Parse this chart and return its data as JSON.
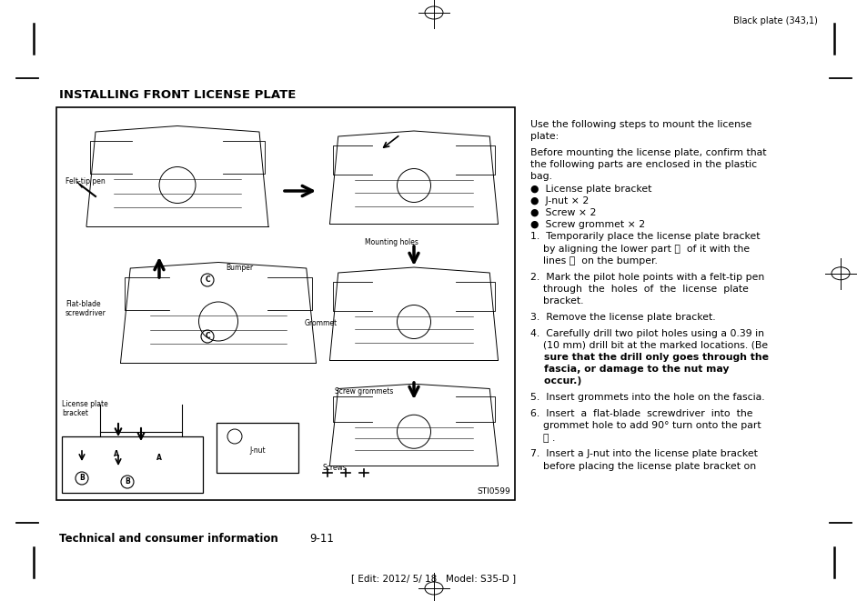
{
  "page_background": "#ffffff",
  "header_text": "Black plate (343,1)",
  "footer_text": "[ Edit: 2012/ 5/ 18   Model: S35-D ]",
  "section_title": "INSTALLING FRONT LICENSE PLATE",
  "image_label": "STI0599",
  "font_size_body": 7.8,
  "font_size_header": 7.0,
  "font_size_title": 9.5,
  "font_size_footer": 7.5,
  "right_col_lines": [
    {
      "text": "Use the following steps to mount the license",
      "bold": false,
      "indent": 0
    },
    {
      "text": "plate:",
      "bold": false,
      "indent": 0
    },
    {
      "text": "",
      "bold": false,
      "indent": 0
    },
    {
      "text": "Before mounting the license plate, confirm that",
      "bold": false,
      "indent": 0
    },
    {
      "text": "the following parts are enclosed in the plastic",
      "bold": false,
      "indent": 0
    },
    {
      "text": "bag.",
      "bold": false,
      "indent": 0
    },
    {
      "text": "●  License plate bracket",
      "bold": false,
      "indent": 0
    },
    {
      "text": "●  J-nut × 2",
      "bold": false,
      "indent": 0
    },
    {
      "text": "●  Screw × 2",
      "bold": false,
      "indent": 0
    },
    {
      "text": "●  Screw grommet × 2",
      "bold": false,
      "indent": 0
    },
    {
      "text": "1.  Temporarily place the license plate bracket",
      "bold": false,
      "indent": 0
    },
    {
      "text": "    by aligning the lower part Ⓐ  of it with the",
      "bold": false,
      "indent": 0
    },
    {
      "text": "    lines Ⓑ  on the bumper.",
      "bold": false,
      "indent": 0
    },
    {
      "text": "",
      "bold": false,
      "indent": 0
    },
    {
      "text": "2.  Mark the pilot hole points with a felt-tip pen",
      "bold": false,
      "indent": 0
    },
    {
      "text": "    through  the  holes  of  the  license  plate",
      "bold": false,
      "indent": 0
    },
    {
      "text": "    bracket.",
      "bold": false,
      "indent": 0
    },
    {
      "text": "",
      "bold": false,
      "indent": 0
    },
    {
      "text": "3.  Remove the license plate bracket.",
      "bold": false,
      "indent": 0
    },
    {
      "text": "",
      "bold": false,
      "indent": 0
    },
    {
      "text": "4.  Carefully drill two pilot holes using a 0.39 in",
      "bold": false,
      "indent": 0
    },
    {
      "text": "    (10 mm) drill bit at the marked locations. (Be",
      "bold": false,
      "indent": 0
    },
    {
      "text": "    sure that the drill only goes through the",
      "bold": true,
      "indent": 0
    },
    {
      "text": "    fascia, or damage to the nut may",
      "bold": true,
      "indent": 0
    },
    {
      "text": "    occur.)",
      "bold": true,
      "indent": 0
    },
    {
      "text": "",
      "bold": false,
      "indent": 0
    },
    {
      "text": "5.  Insert grommets into the hole on the fascia.",
      "bold": false,
      "indent": 0
    },
    {
      "text": "",
      "bold": false,
      "indent": 0
    },
    {
      "text": "6.  Insert  a  flat-blade  screwdriver  into  the",
      "bold": false,
      "indent": 0
    },
    {
      "text": "    grommet hole to add 90° turn onto the part",
      "bold": false,
      "indent": 0
    },
    {
      "text": "    Ⓒ .",
      "bold": false,
      "indent": 0
    },
    {
      "text": "",
      "bold": false,
      "indent": 0
    },
    {
      "text": "7.  Insert a J-nut into the license plate bracket",
      "bold": false,
      "indent": 0
    },
    {
      "text": "    before placing the license plate bracket on",
      "bold": false,
      "indent": 0
    }
  ]
}
